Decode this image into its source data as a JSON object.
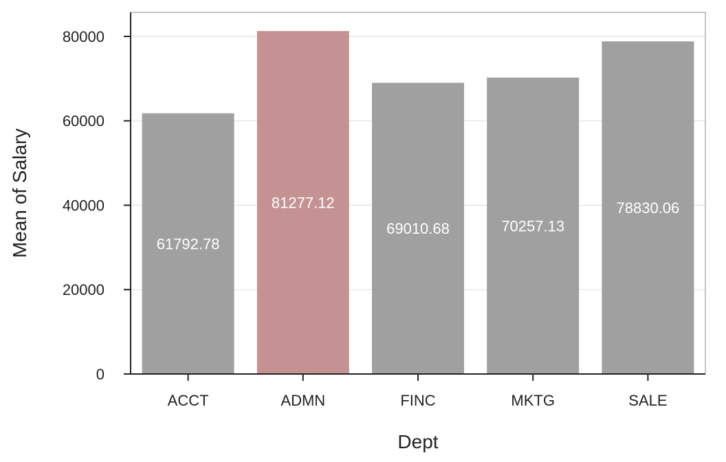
{
  "chart_data": {
    "type": "bar",
    "categories": [
      "ACCT",
      "ADMN",
      "FINC",
      "MKTG",
      "SALE"
    ],
    "values": [
      61792.78,
      81277.12,
      69010.68,
      70257.13,
      78830.06
    ],
    "value_labels": [
      "61792.78",
      "81277.12",
      "69010.68",
      "70257.13",
      "78830.06"
    ],
    "highlight_index": 1,
    "colors": {
      "bar": "#a0a0a0",
      "highlight": "#c49292",
      "grid": "#dddddd",
      "axis": "#222222",
      "frame": "#888888"
    },
    "title": "",
    "xlabel": "Dept",
    "ylabel": "Mean of Salary",
    "ylim": [
      0,
      85700
    ],
    "yticks": [
      0,
      20000,
      40000,
      60000,
      80000
    ],
    "ytick_labels": [
      "0",
      "20000",
      "40000",
      "60000",
      "80000"
    ],
    "grid": true,
    "legend": "none"
  }
}
